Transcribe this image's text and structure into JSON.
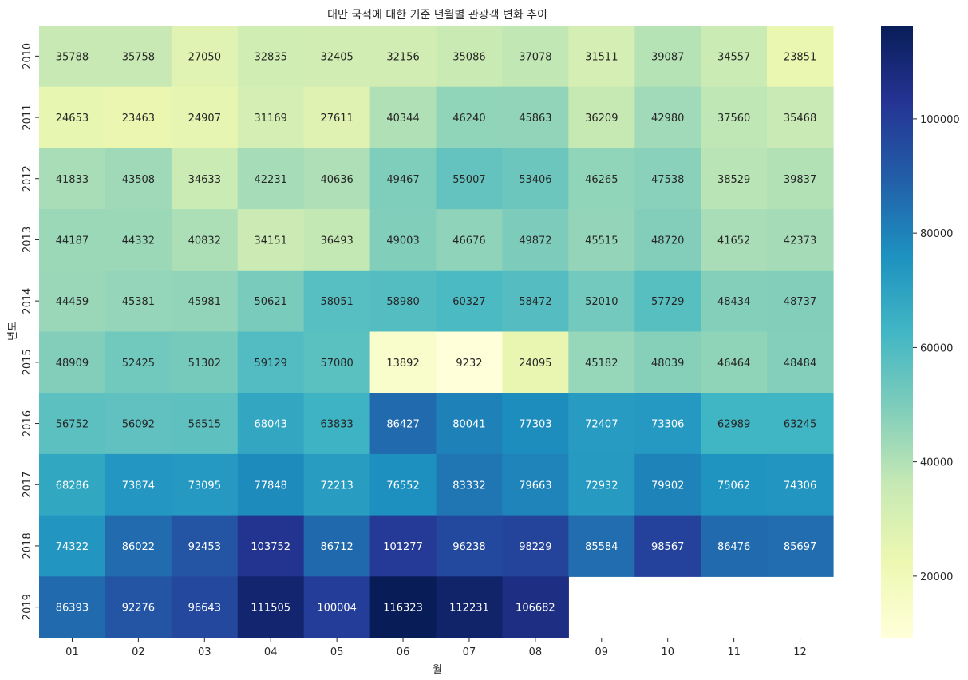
{
  "chart_data": {
    "type": "heatmap",
    "title": "대만 국적에 대한 기준 년월별 관광객 변화 추이",
    "xlabel": "월",
    "ylabel": "년도",
    "x_categories": [
      "01",
      "02",
      "03",
      "04",
      "05",
      "06",
      "07",
      "08",
      "09",
      "10",
      "11",
      "12"
    ],
    "y_categories": [
      "2010",
      "2011",
      "2012",
      "2013",
      "2014",
      "2015",
      "2016",
      "2017",
      "2018",
      "2019"
    ],
    "values": [
      [
        35788,
        35758,
        27050,
        32835,
        32405,
        32156,
        35086,
        37078,
        31511,
        39087,
        34557,
        23851
      ],
      [
        24653,
        23463,
        24907,
        31169,
        27611,
        40344,
        46240,
        45863,
        36209,
        42980,
        37560,
        35468
      ],
      [
        41833,
        43508,
        34633,
        42231,
        40636,
        49467,
        55007,
        53406,
        46265,
        47538,
        38529,
        39837
      ],
      [
        44187,
        44332,
        40832,
        34151,
        36493,
        49003,
        46676,
        49872,
        45515,
        48720,
        41652,
        42373
      ],
      [
        44459,
        45381,
        45981,
        50621,
        58051,
        58980,
        60327,
        58472,
        52010,
        57729,
        48434,
        48737
      ],
      [
        48909,
        52425,
        51302,
        59129,
        57080,
        13892,
        9232,
        24095,
        45182,
        48039,
        46464,
        48484
      ],
      [
        56752,
        56092,
        56515,
        68043,
        63833,
        86427,
        80041,
        77303,
        72407,
        73306,
        62989,
        63245
      ],
      [
        68286,
        73874,
        73095,
        77848,
        72213,
        76552,
        83332,
        79663,
        72932,
        79902,
        75062,
        74306
      ],
      [
        74322,
        86022,
        92453,
        103752,
        86712,
        101277,
        96238,
        98229,
        85584,
        98567,
        86476,
        85697
      ],
      [
        86393,
        92276,
        96643,
        111505,
        100004,
        116323,
        112231,
        106682,
        null,
        null,
        null,
        null
      ]
    ],
    "colormap": "YlGnBu",
    "color_range": [
      9232,
      116323
    ],
    "colorbar_ticks": [
      20000,
      40000,
      60000,
      80000,
      100000
    ],
    "colorbar_tick_labels": [
      "20000",
      "40000",
      "60000",
      "80000",
      "100000"
    ],
    "annotations": true,
    "grid": false
  }
}
